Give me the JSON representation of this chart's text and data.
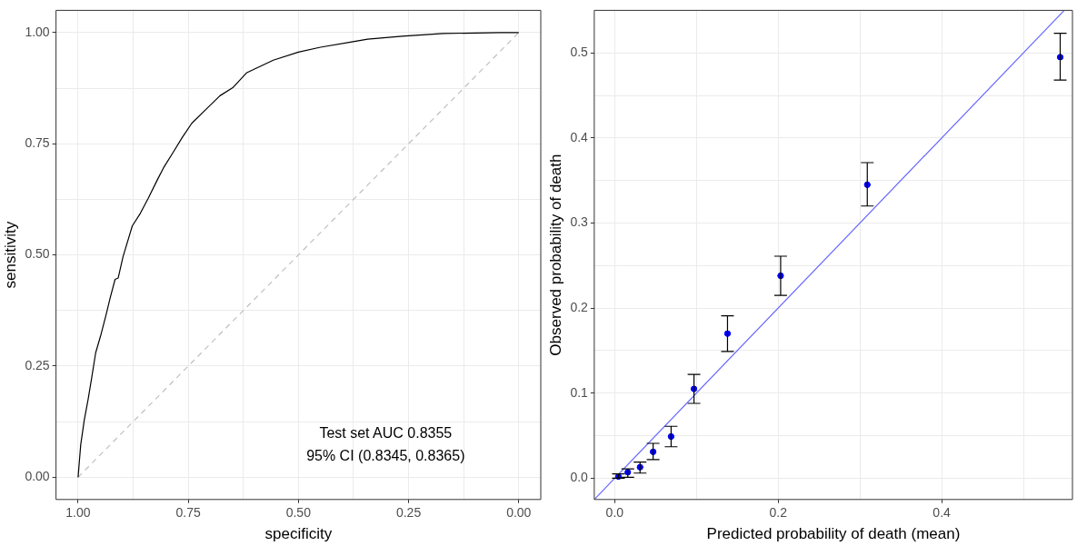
{
  "chart_data": [
    {
      "type": "line",
      "xlabel": "specificity",
      "ylabel": "sensitivity",
      "xlim": [
        1.05,
        -0.05
      ],
      "ylim": [
        -0.05,
        1.05
      ],
      "xticks": [
        {
          "value": 1,
          "label": "1.00"
        },
        {
          "value": 0.875,
          "label": null
        },
        {
          "value": 0.75,
          "label": "0.75"
        },
        {
          "value": 0.625,
          "label": null
        },
        {
          "value": 0.5,
          "label": "0.50"
        },
        {
          "value": 0.375,
          "label": null
        },
        {
          "value": 0.25,
          "label": "0.25"
        },
        {
          "value": 0.125,
          "label": null
        },
        {
          "value": 0,
          "label": "0.00"
        }
      ],
      "yticks": [
        {
          "value": 0,
          "label": "0.00"
        },
        {
          "value": 0.125,
          "label": null
        },
        {
          "value": 0.25,
          "label": "0.25"
        },
        {
          "value": 0.375,
          "label": null
        },
        {
          "value": 0.5,
          "label": "0.50"
        },
        {
          "value": 0.625,
          "label": null
        },
        {
          "value": 0.75,
          "label": "0.75"
        },
        {
          "value": 0.875,
          "label": null
        },
        {
          "value": 1,
          "label": "1.00"
        }
      ],
      "grid": true,
      "legend": false,
      "annotations": [
        "Test set AUC 0.8355",
        "95% CI (0.8345, 0.8365)"
      ],
      "series": [
        {
          "color": "#000000",
          "line_style": "solid",
          "x": [
            1,
            0.998,
            0.994,
            0.986,
            0.977,
            0.969,
            0.96,
            0.948,
            0.937,
            0.927,
            0.916,
            0.909,
            0.898,
            0.877,
            0.859,
            0.841,
            0.82,
            0.806,
            0.784,
            0.763,
            0.742,
            0.706,
            0.678,
            0.649,
            0.617,
            0.557,
            0.5,
            0.45,
            0.379,
            0.343,
            0.265,
            0.172,
            0.044,
            0
          ],
          "values": [
            0,
            0.024,
            0.073,
            0.128,
            0.176,
            0.224,
            0.28,
            0.321,
            0.363,
            0.404,
            0.445,
            0.448,
            0.496,
            0.565,
            0.593,
            0.627,
            0.669,
            0.696,
            0.731,
            0.765,
            0.796,
            0.831,
            0.858,
            0.876,
            0.91,
            0.938,
            0.956,
            0.967,
            0.979,
            0.985,
            0.992,
            0.998,
            1,
            1
          ]
        },
        {
          "color": "#bfbfbf",
          "line_style": "dashed",
          "x": [
            1,
            0
          ],
          "values": [
            0,
            1
          ]
        }
      ]
    },
    {
      "type": "scatter",
      "xlabel": "Predicted probability of death (mean)",
      "ylabel": "Observed probability of death",
      "xlim": [
        -0.025,
        0.56
      ],
      "ylim": [
        -0.025,
        0.55
      ],
      "xticks": [
        {
          "value": 0,
          "label": "0.0"
        },
        {
          "value": 0.1,
          "label": null
        },
        {
          "value": 0.2,
          "label": "0.2"
        },
        {
          "value": 0.3,
          "label": null
        },
        {
          "value": 0.4,
          "label": "0.4"
        },
        {
          "value": 0.5,
          "label": null
        }
      ],
      "yticks": [
        {
          "value": 0,
          "label": "0.0"
        },
        {
          "value": 0.05,
          "label": null
        },
        {
          "value": 0.1,
          "label": "0.1"
        },
        {
          "value": 0.15,
          "label": null
        },
        {
          "value": 0.2,
          "label": "0.2"
        },
        {
          "value": 0.25,
          "label": null
        },
        {
          "value": 0.3,
          "label": "0.3"
        },
        {
          "value": 0.35,
          "label": null
        },
        {
          "value": 0.4,
          "label": "0.4"
        },
        {
          "value": 0.45,
          "label": null
        },
        {
          "value": 0.5,
          "label": "0.5"
        }
      ],
      "grid": true,
      "legend": false,
      "series": [
        {
          "type": "line",
          "color": "#6666ff",
          "line_style": "solid",
          "x": [
            -0.025,
            0.55
          ],
          "values": [
            -0.025,
            0.55
          ]
        },
        {
          "color": "#0000ff",
          "marker": "circle",
          "x": [
            0.0046,
            0.016,
            0.031,
            0.047,
            0.069,
            0.097,
            0.138,
            0.203,
            0.309,
            0.545
          ],
          "values": [
            0.002,
            0.007,
            0.013,
            0.031,
            0.049,
            0.105,
            0.17,
            0.238,
            0.345,
            0.495
          ],
          "errors": [
            [
              0,
              0.005
            ],
            [
              0.001,
              0.011
            ],
            [
              0.006,
              0.019
            ],
            [
              0.022,
              0.041
            ],
            [
              0.037,
              0.061
            ],
            [
              0.088,
              0.122
            ],
            [
              0.149,
              0.191
            ],
            [
              0.215,
              0.261
            ],
            [
              0.32,
              0.371
            ],
            [
              0.468,
              0.523
            ]
          ]
        }
      ]
    }
  ]
}
